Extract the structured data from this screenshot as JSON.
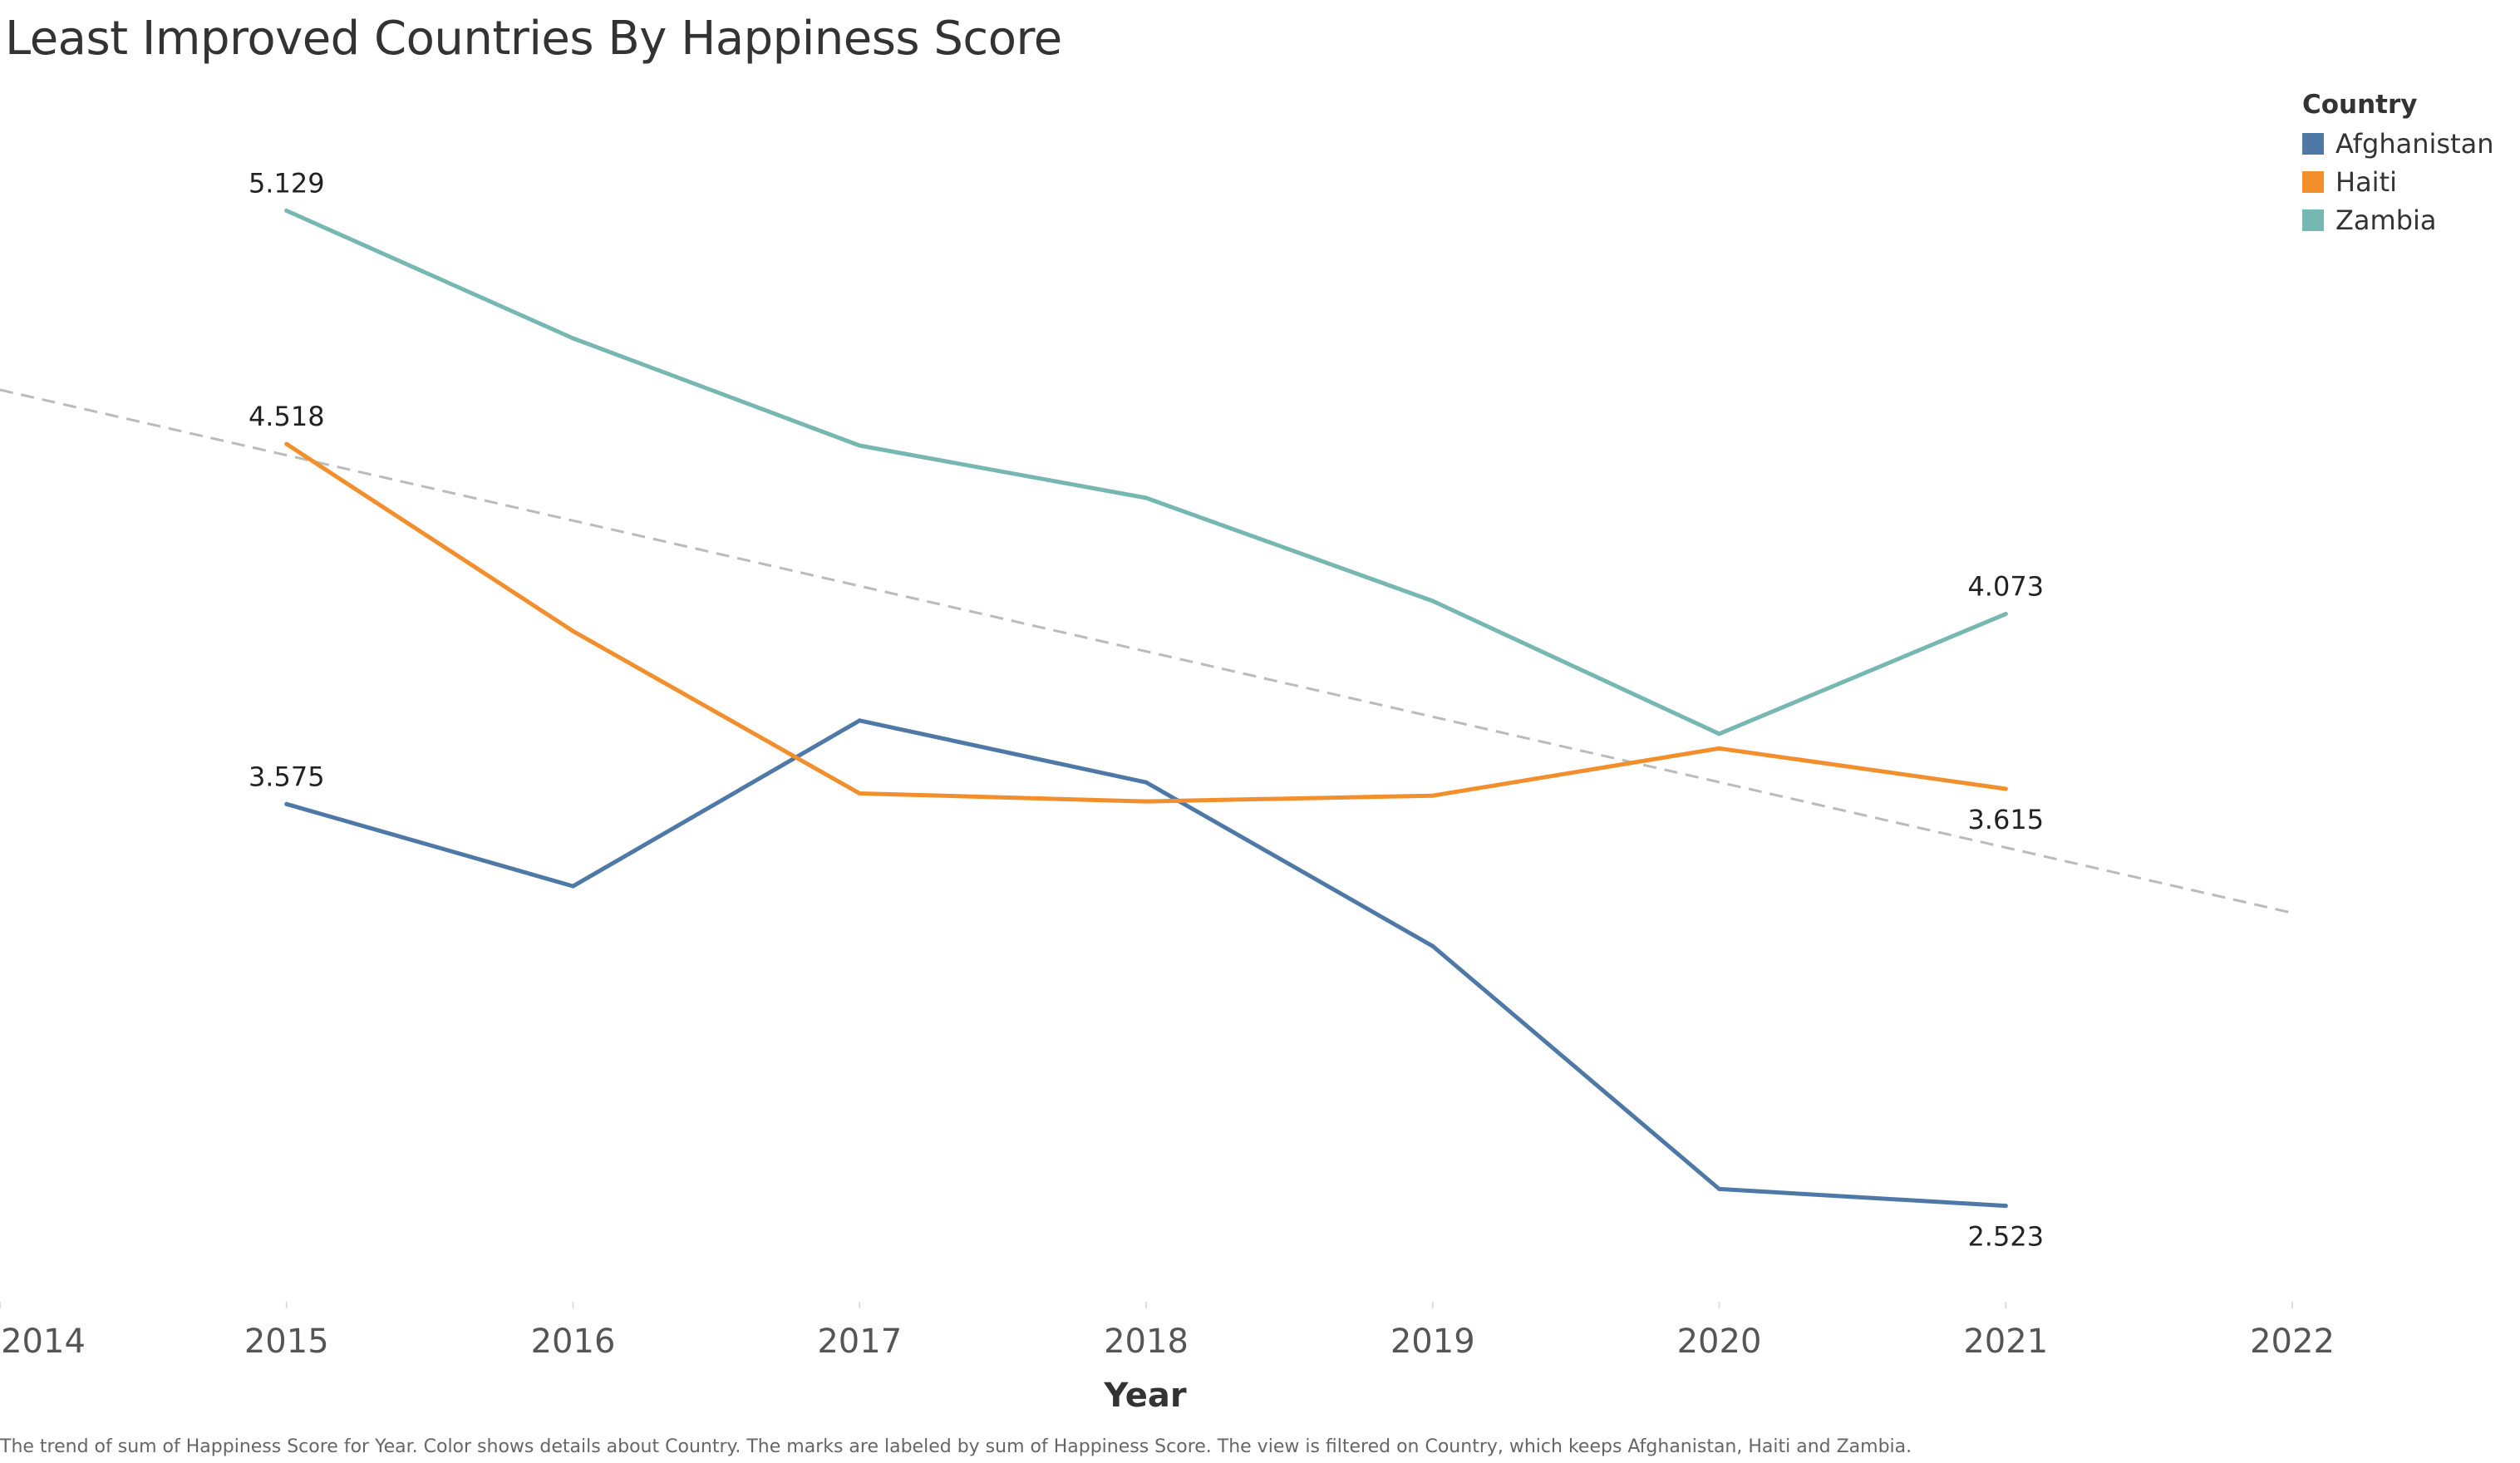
{
  "title": "Least Improved Countries By Happiness Score",
  "legend": {
    "title": "Country",
    "items": [
      {
        "label": "Afghanistan",
        "color": "#4e79a7"
      },
      {
        "label": "Haiti",
        "color": "#f28e2b"
      },
      {
        "label": "Zambia",
        "color": "#76b7b2"
      }
    ]
  },
  "caption": "The trend of sum of Happiness Score for Year.  Color shows details about Country.  The marks are labeled by sum of Happiness Score. The view is filtered on Country, which keeps Afghanistan, Haiti and Zambia.",
  "chart_data": {
    "type": "line",
    "title": "Least Improved Countries By Happiness Score",
    "xlabel": "Year",
    "ylabel": "",
    "x": [
      2015,
      2016,
      2017,
      2018,
      2019,
      2020,
      2021
    ],
    "x_ticks": [
      "2014",
      "2015",
      "2016",
      "2017",
      "2018",
      "2019",
      "2020",
      "2021",
      "2022"
    ],
    "xlim": [
      2014,
      2022
    ],
    "ylim": [
      2.3,
      5.3
    ],
    "y_axis_visible": false,
    "grid": false,
    "legend_position": "top-right",
    "series": [
      {
        "name": "Afghanistan",
        "color": "#4e79a7",
        "values": [
          3.575,
          3.36,
          3.794,
          3.632,
          3.203,
          2.567,
          2.523
        ]
      },
      {
        "name": "Haiti",
        "color": "#f28e2b",
        "values": [
          4.518,
          4.028,
          3.603,
          3.582,
          3.597,
          3.721,
          3.615
        ]
      },
      {
        "name": "Zambia",
        "color": "#76b7b2",
        "values": [
          5.129,
          4.795,
          4.514,
          4.377,
          4.107,
          3.759,
          4.073
        ]
      }
    ],
    "point_labels": [
      {
        "series": "Zambia",
        "x": 2015,
        "text": "5.129",
        "position": "above"
      },
      {
        "series": "Haiti",
        "x": 2015,
        "text": "4.518",
        "position": "above"
      },
      {
        "series": "Afghanistan",
        "x": 2015,
        "text": "3.575",
        "position": "above"
      },
      {
        "series": "Zambia",
        "x": 2021,
        "text": "4.073",
        "position": "above"
      },
      {
        "series": "Haiti",
        "x": 2021,
        "text": "3.615",
        "position": "below"
      },
      {
        "series": "Afghanistan",
        "x": 2021,
        "text": "2.523",
        "position": "below"
      }
    ],
    "trend_line": {
      "style": "dashed",
      "color": "#bbbbbb",
      "start": [
        2014,
        4.66
      ],
      "end": [
        2022,
        3.29
      ]
    }
  }
}
